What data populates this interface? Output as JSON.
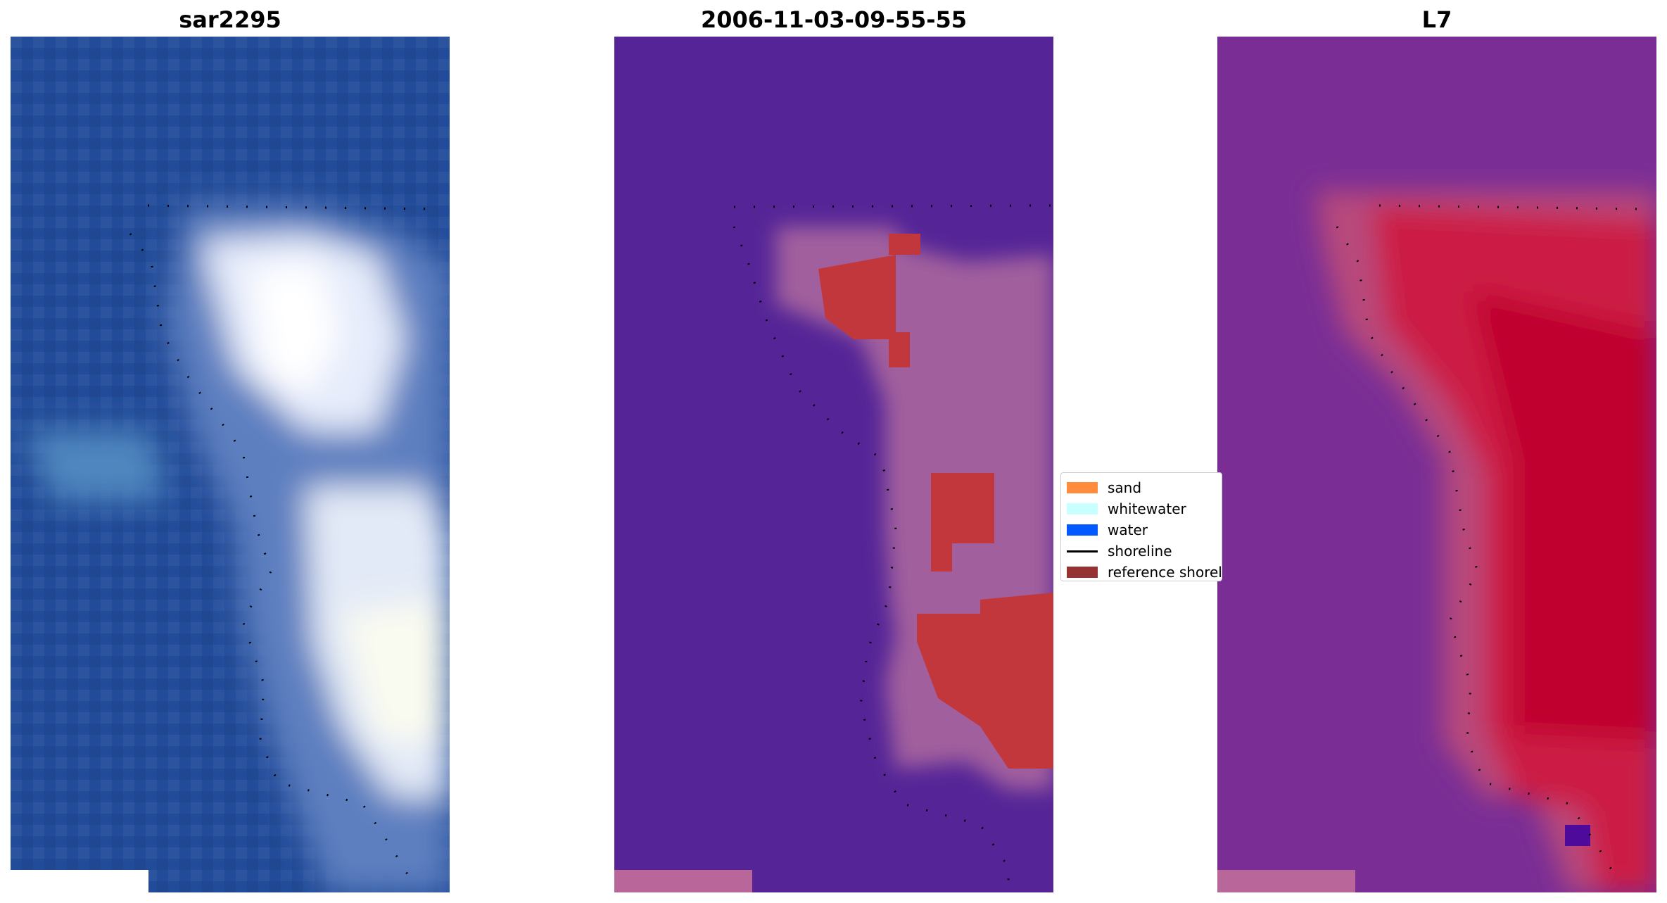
{
  "panels": [
    {
      "title": "sar2295",
      "image": "sar-rgb-composite"
    },
    {
      "title": "2006-11-03-09-55-55",
      "image": "classified-overlay"
    },
    {
      "title": "L7",
      "image": "spectral-index-map"
    }
  ],
  "legend": {
    "items": [
      {
        "label": "sand",
        "color": "#ff8c3c",
        "kind": "patch"
      },
      {
        "label": "whitewater",
        "color": "#c8ffff",
        "kind": "patch"
      },
      {
        "label": "water",
        "color": "#005aff",
        "kind": "patch"
      },
      {
        "label": "shoreline",
        "color": "#000000",
        "kind": "line"
      },
      {
        "label": "reference shoreline",
        "color": "#963232",
        "kind": "patch"
      }
    ]
  }
}
